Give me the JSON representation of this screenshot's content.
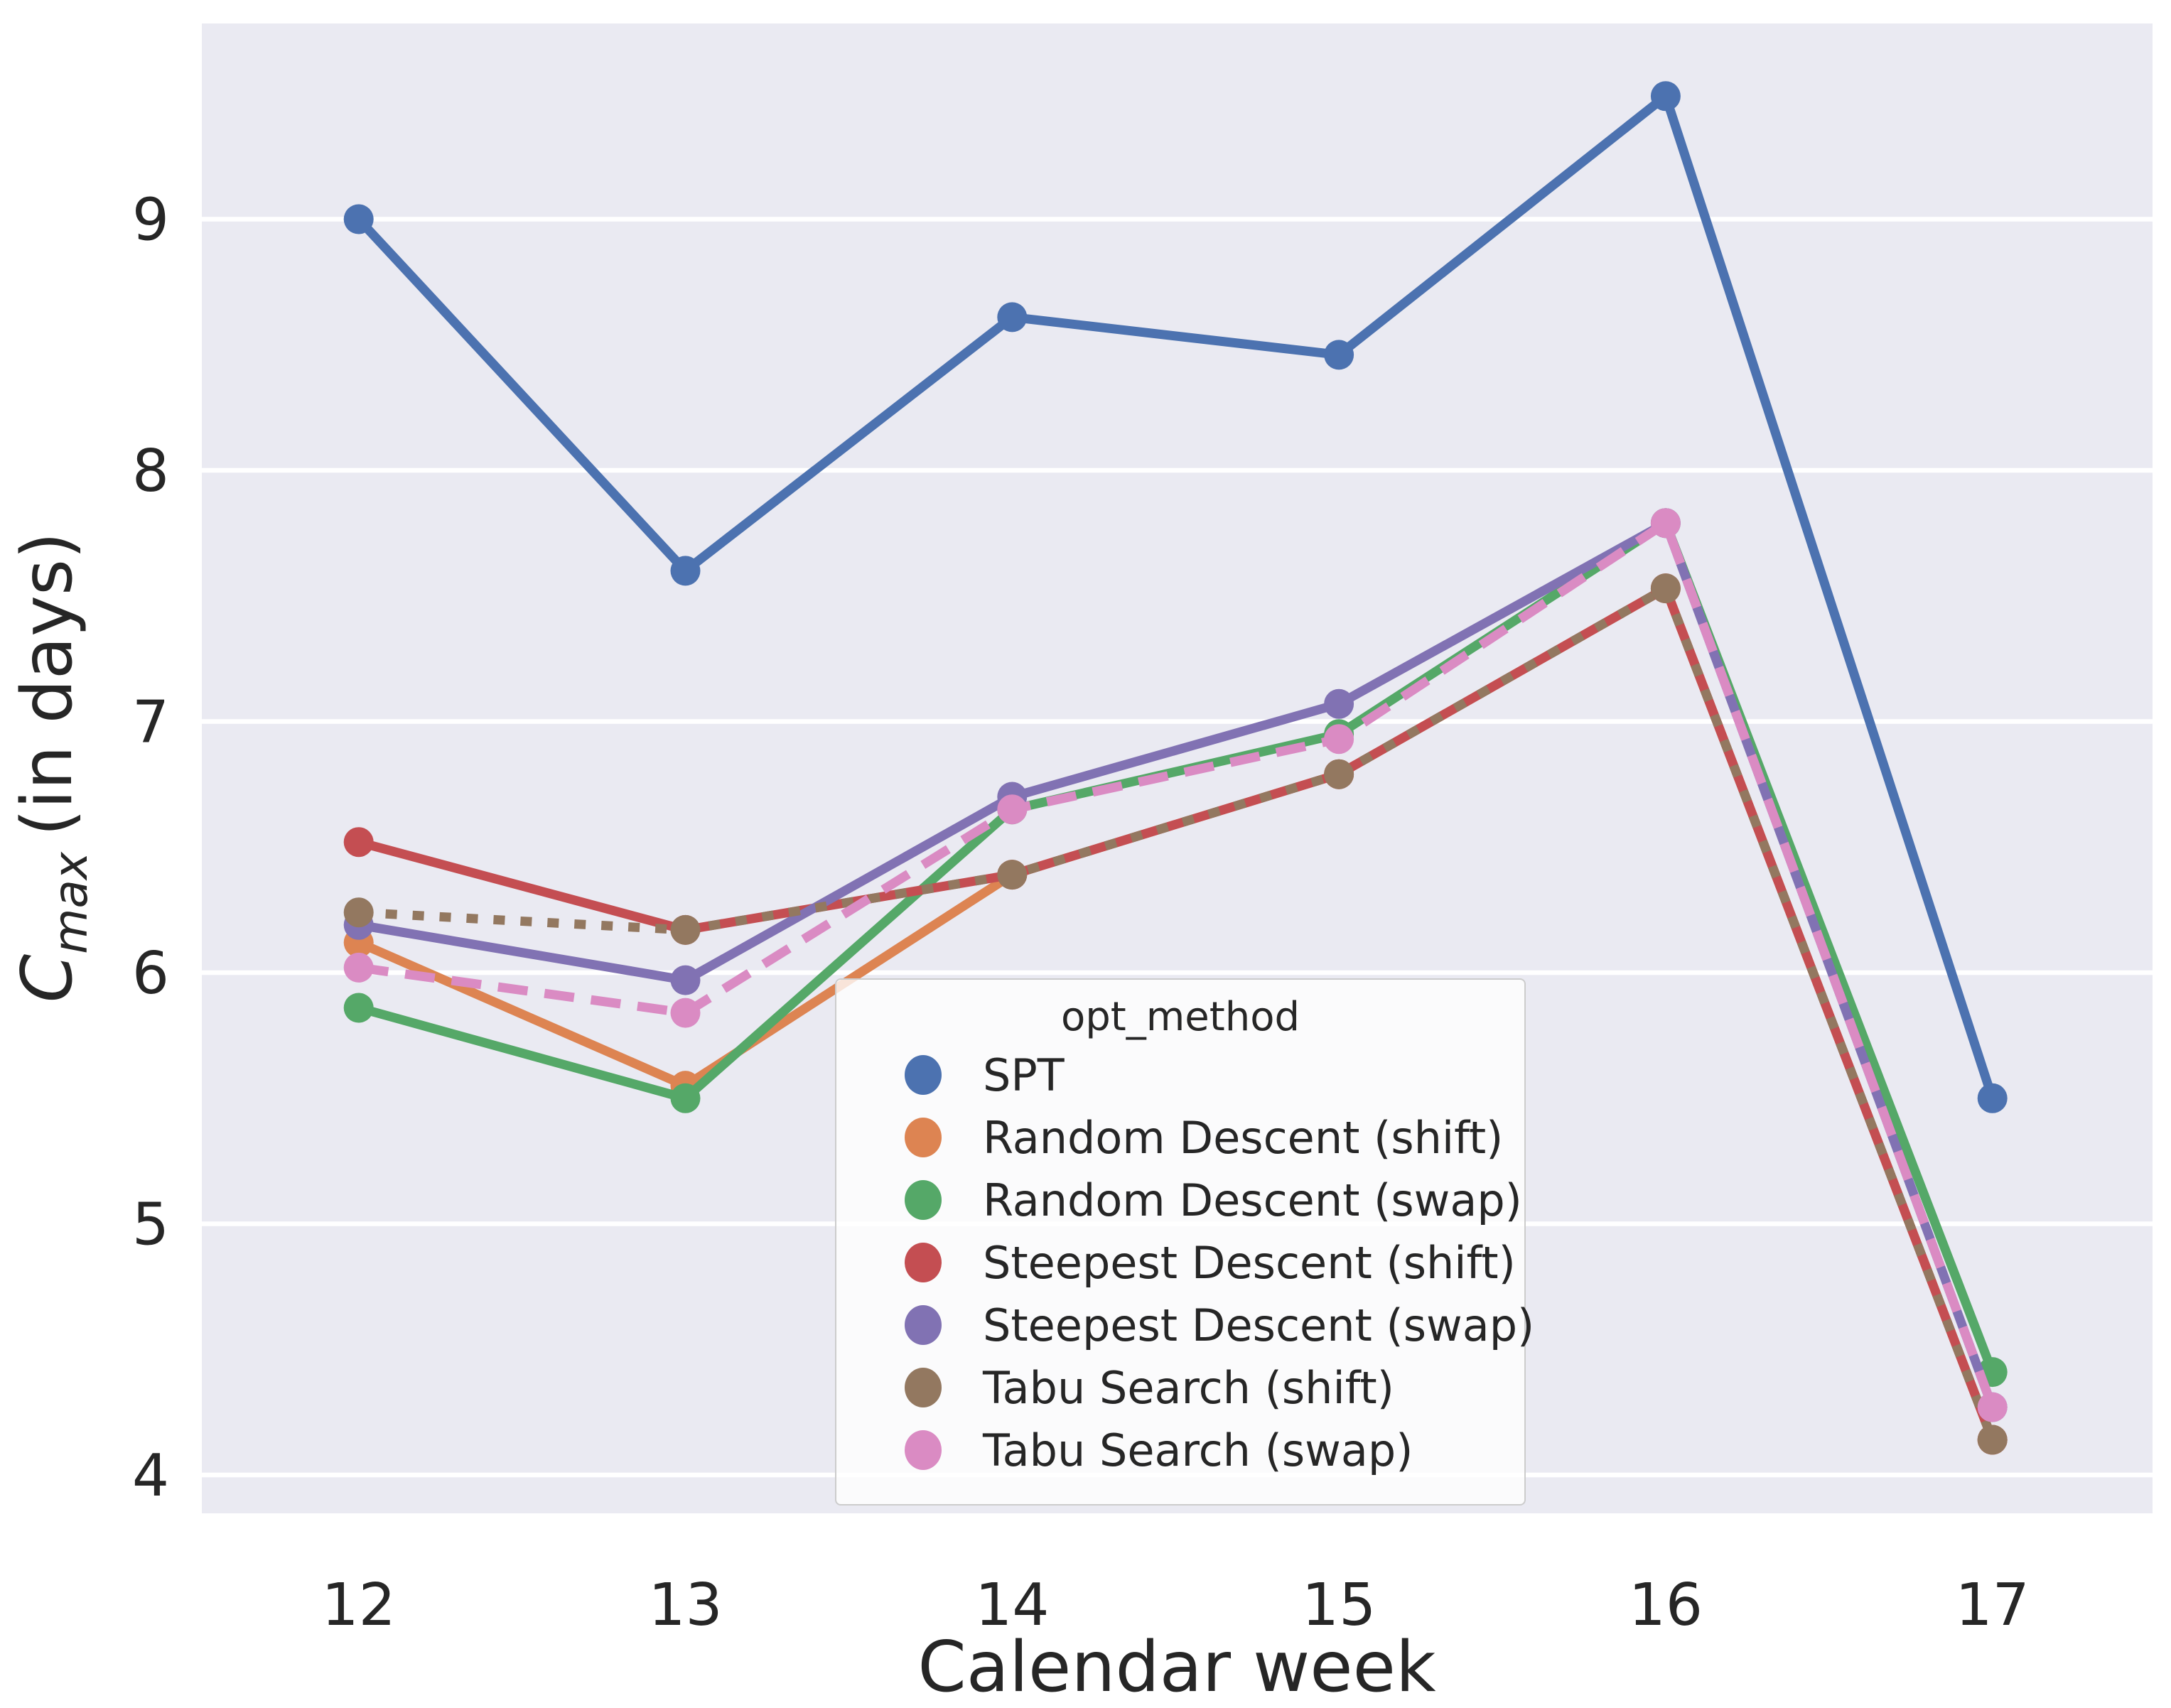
{
  "chart_data": {
    "type": "line",
    "title": "",
    "xlabel": "Calendar week",
    "ylabel_parts": {
      "var": "C",
      "sub": "max",
      "rest": "(in days)"
    },
    "ylabel_plain": "C_max (in days)",
    "legend_title": "opt_method",
    "legend_position": "lower center-right inside plot",
    "grid": "horizontal white gridlines on light-gray plot background",
    "plot_background": "#EAEAF2",
    "gridline_color": "#FFFFFF",
    "text_color": "#262626",
    "x": [
      12,
      13,
      14,
      15,
      16,
      17
    ],
    "x_tick_labels": [
      "12",
      "13",
      "14",
      "15",
      "16",
      "17"
    ],
    "y_tick_labels": [
      "4",
      "5",
      "6",
      "7",
      "8",
      "9"
    ],
    "y_ticks": [
      4,
      5,
      6,
      7,
      8,
      9
    ],
    "xlim": [
      11.52,
      17.49
    ],
    "ylim": [
      3.85,
      9.78
    ],
    "series": [
      {
        "name": "SPT",
        "color": "#4C72B0",
        "style": "solid",
        "values": [
          9.0,
          7.6,
          8.61,
          8.46,
          9.49,
          5.5
        ]
      },
      {
        "name": "Random Descent (shift)",
        "color": "#DD8452",
        "style": "solid",
        "values": [
          6.12,
          5.55,
          6.39,
          6.79,
          7.53,
          4.14
        ]
      },
      {
        "name": "Random Descent (swap)",
        "color": "#55A868",
        "style": "solid",
        "values": [
          5.86,
          5.5,
          6.65,
          6.95,
          7.79,
          4.41
        ]
      },
      {
        "name": "Steepest Descent (shift)",
        "color": "#C44E52",
        "style": "solid",
        "values": [
          6.52,
          6.17,
          6.39,
          6.79,
          7.53,
          4.14
        ]
      },
      {
        "name": "Steepest Descent (swap)",
        "color": "#8172B3",
        "style": "solid",
        "values": [
          6.19,
          5.97,
          6.7,
          7.07,
          7.79,
          4.27
        ]
      },
      {
        "name": "Tabu Search (shift)",
        "color": "#937860",
        "style": "dotted",
        "values": [
          6.24,
          6.17,
          6.39,
          6.79,
          7.53,
          4.14
        ]
      },
      {
        "name": "Tabu Search (swap)",
        "color": "#DA8BC3",
        "style": "dashed",
        "values": [
          6.02,
          5.84,
          6.65,
          6.93,
          7.79,
          4.27
        ]
      }
    ]
  }
}
